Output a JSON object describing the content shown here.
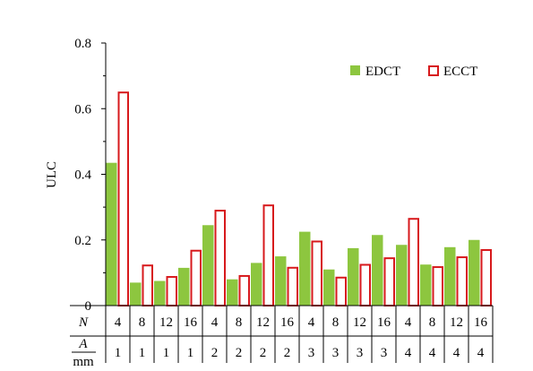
{
  "chart_data": {
    "type": "bar",
    "ylabel": "ULC",
    "ylim": [
      0,
      0.8
    ],
    "yticks": [
      "0.8",
      "0.6",
      "0.4",
      "0.2",
      "0"
    ],
    "ytick_values": [
      0.8,
      0.6,
      0.4,
      0.2,
      0
    ],
    "legend_position": "top-right",
    "rows": {
      "n_label": "N",
      "a_label": "A",
      "a_unit": "mm"
    },
    "categories": [
      {
        "N": "4",
        "A": "1"
      },
      {
        "N": "8",
        "A": "1"
      },
      {
        "N": "12",
        "A": "1"
      },
      {
        "N": "16",
        "A": "1"
      },
      {
        "N": "4",
        "A": "2"
      },
      {
        "N": "8",
        "A": "2"
      },
      {
        "N": "12",
        "A": "2"
      },
      {
        "N": "16",
        "A": "2"
      },
      {
        "N": "4",
        "A": "3"
      },
      {
        "N": "8",
        "A": "3"
      },
      {
        "N": "12",
        "A": "3"
      },
      {
        "N": "16",
        "A": "3"
      },
      {
        "N": "4",
        "A": "4"
      },
      {
        "N": "8",
        "A": "4"
      },
      {
        "N": "12",
        "A": "4"
      },
      {
        "N": "16",
        "A": "4"
      }
    ],
    "series": [
      {
        "name": "EDCT",
        "color": "#8dc63f",
        "style": "filled",
        "values": [
          0.435,
          0.07,
          0.075,
          0.115,
          0.245,
          0.08,
          0.13,
          0.15,
          0.225,
          0.11,
          0.175,
          0.215,
          0.185,
          0.125,
          0.178,
          0.2
        ]
      },
      {
        "name": "ECCT",
        "color": "#d7191c",
        "style": "outline",
        "values": [
          0.652,
          0.125,
          0.09,
          0.17,
          0.292,
          0.093,
          0.308,
          0.118,
          0.198,
          0.088,
          0.127,
          0.147,
          0.267,
          0.12,
          0.15,
          0.172
        ]
      }
    ]
  }
}
